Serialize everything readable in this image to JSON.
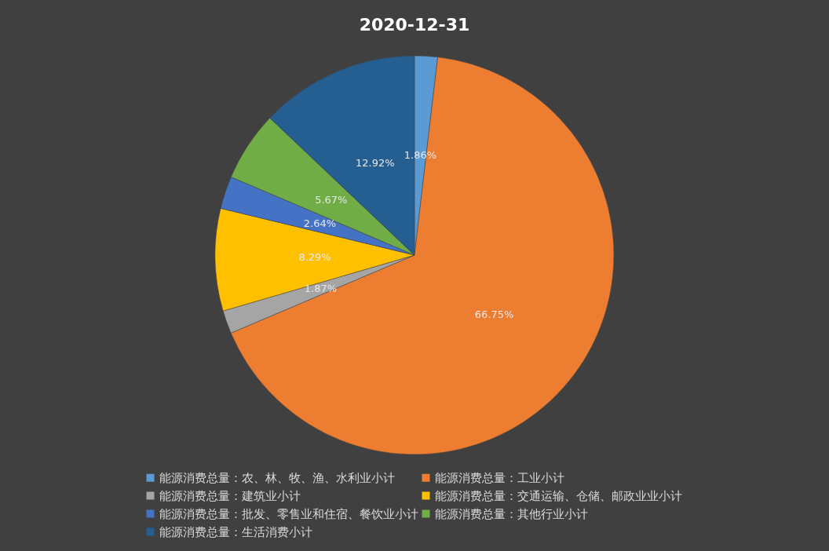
{
  "chart_data": {
    "type": "pie",
    "title": "2020-12-31",
    "categories": [
      "能源消费总量：农、林、牧、渔、水利业小计",
      "能源消费总量：工业小计",
      "能源消费总量：建筑业小计",
      "能源消费总量：交通运输、仓储、邮政业业小计",
      "能源消费总量：批发、零售业和住宿、餐饮业小计",
      "能源消费总量：其他行业小计",
      "能源消费总量：生活消费小计"
    ],
    "values": [
      1.86,
      66.75,
      1.87,
      8.29,
      2.64,
      5.67,
      12.92
    ],
    "value_labels": [
      "1.86%",
      "66.75%",
      "1.87%",
      "8.29%",
      "2.64%",
      "5.67%",
      "12.92%"
    ],
    "colors": [
      "#5b9bd5",
      "#ed7d31",
      "#a5a5a5",
      "#ffc000",
      "#4472c4",
      "#70ad47",
      "#255e91"
    ],
    "legend": "bottom"
  }
}
